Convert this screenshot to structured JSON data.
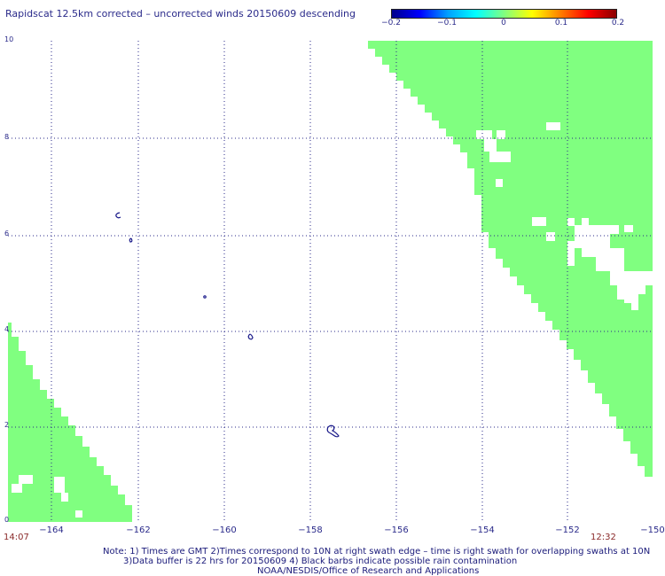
{
  "title": "Rapidscat 12.5km corrected – uncorrected winds 20150609 descending",
  "colorbar": {
    "ticks": [
      "−0.2",
      "−0.1",
      "0",
      "0.1",
      "0.2"
    ],
    "colors": [
      "#00008b",
      "#0000ff",
      "#00a0ff",
      "#00ffff",
      "#80ff80",
      "#ffff00",
      "#ff8000",
      "#ff0000",
      "#8b0000"
    ]
  },
  "axes": {
    "x_ticks": [
      "−164",
      "−162",
      "−160",
      "−158",
      "−156",
      "−154",
      "−152",
      "−150"
    ],
    "y_ticks": [
      "0",
      "2",
      "4",
      "6",
      "8",
      "10"
    ],
    "lon_range": [
      -165,
      -150
    ],
    "lat_range": [
      0,
      10
    ]
  },
  "times": {
    "left": "14:07",
    "right": "12:32"
  },
  "notes": [
    "Note: 1) Times are GMT 2)Times correspond to 10N at right swath edge – time is right swath for overlapping swaths at 10N",
    "3)Data buffer is 22 hrs for 20150609 4) Black barbs indicate possible rain contamination",
    "NOAA/NESDIS/Office of Research and Applications"
  ],
  "colors": {
    "swath": "#80ff80",
    "text": "#2a2a8a",
    "time": "#8a2a2a",
    "grid": "#2a2a8a"
  },
  "map_data": {
    "value_in_swath": 0,
    "right_swath_edge": [
      [
        -157.0,
        10.0
      ],
      [
        -156.0,
        9.0
      ],
      [
        -155.0,
        8.4
      ],
      [
        -154.7,
        7.0
      ],
      [
        -154.3,
        6.0
      ],
      [
        -153.5,
        5.0
      ],
      [
        -152.8,
        4.0
      ],
      [
        -151.6,
        3.0
      ],
      [
        -150.6,
        2.0
      ],
      [
        -150.0,
        1.0
      ]
    ],
    "left_swath_edge": [
      [
        -165.0,
        4.2
      ],
      [
        -164.0,
        2.6
      ],
      [
        -163.0,
        1.8
      ],
      [
        -162.2,
        0.7
      ],
      [
        -161.9,
        0.0
      ]
    ],
    "islands": [
      [
        -162.4,
        6.4
      ],
      [
        -162.2,
        5.9
      ],
      [
        -160.4,
        4.7
      ],
      [
        -159.3,
        3.8
      ],
      [
        -157.5,
        1.9
      ]
    ]
  }
}
